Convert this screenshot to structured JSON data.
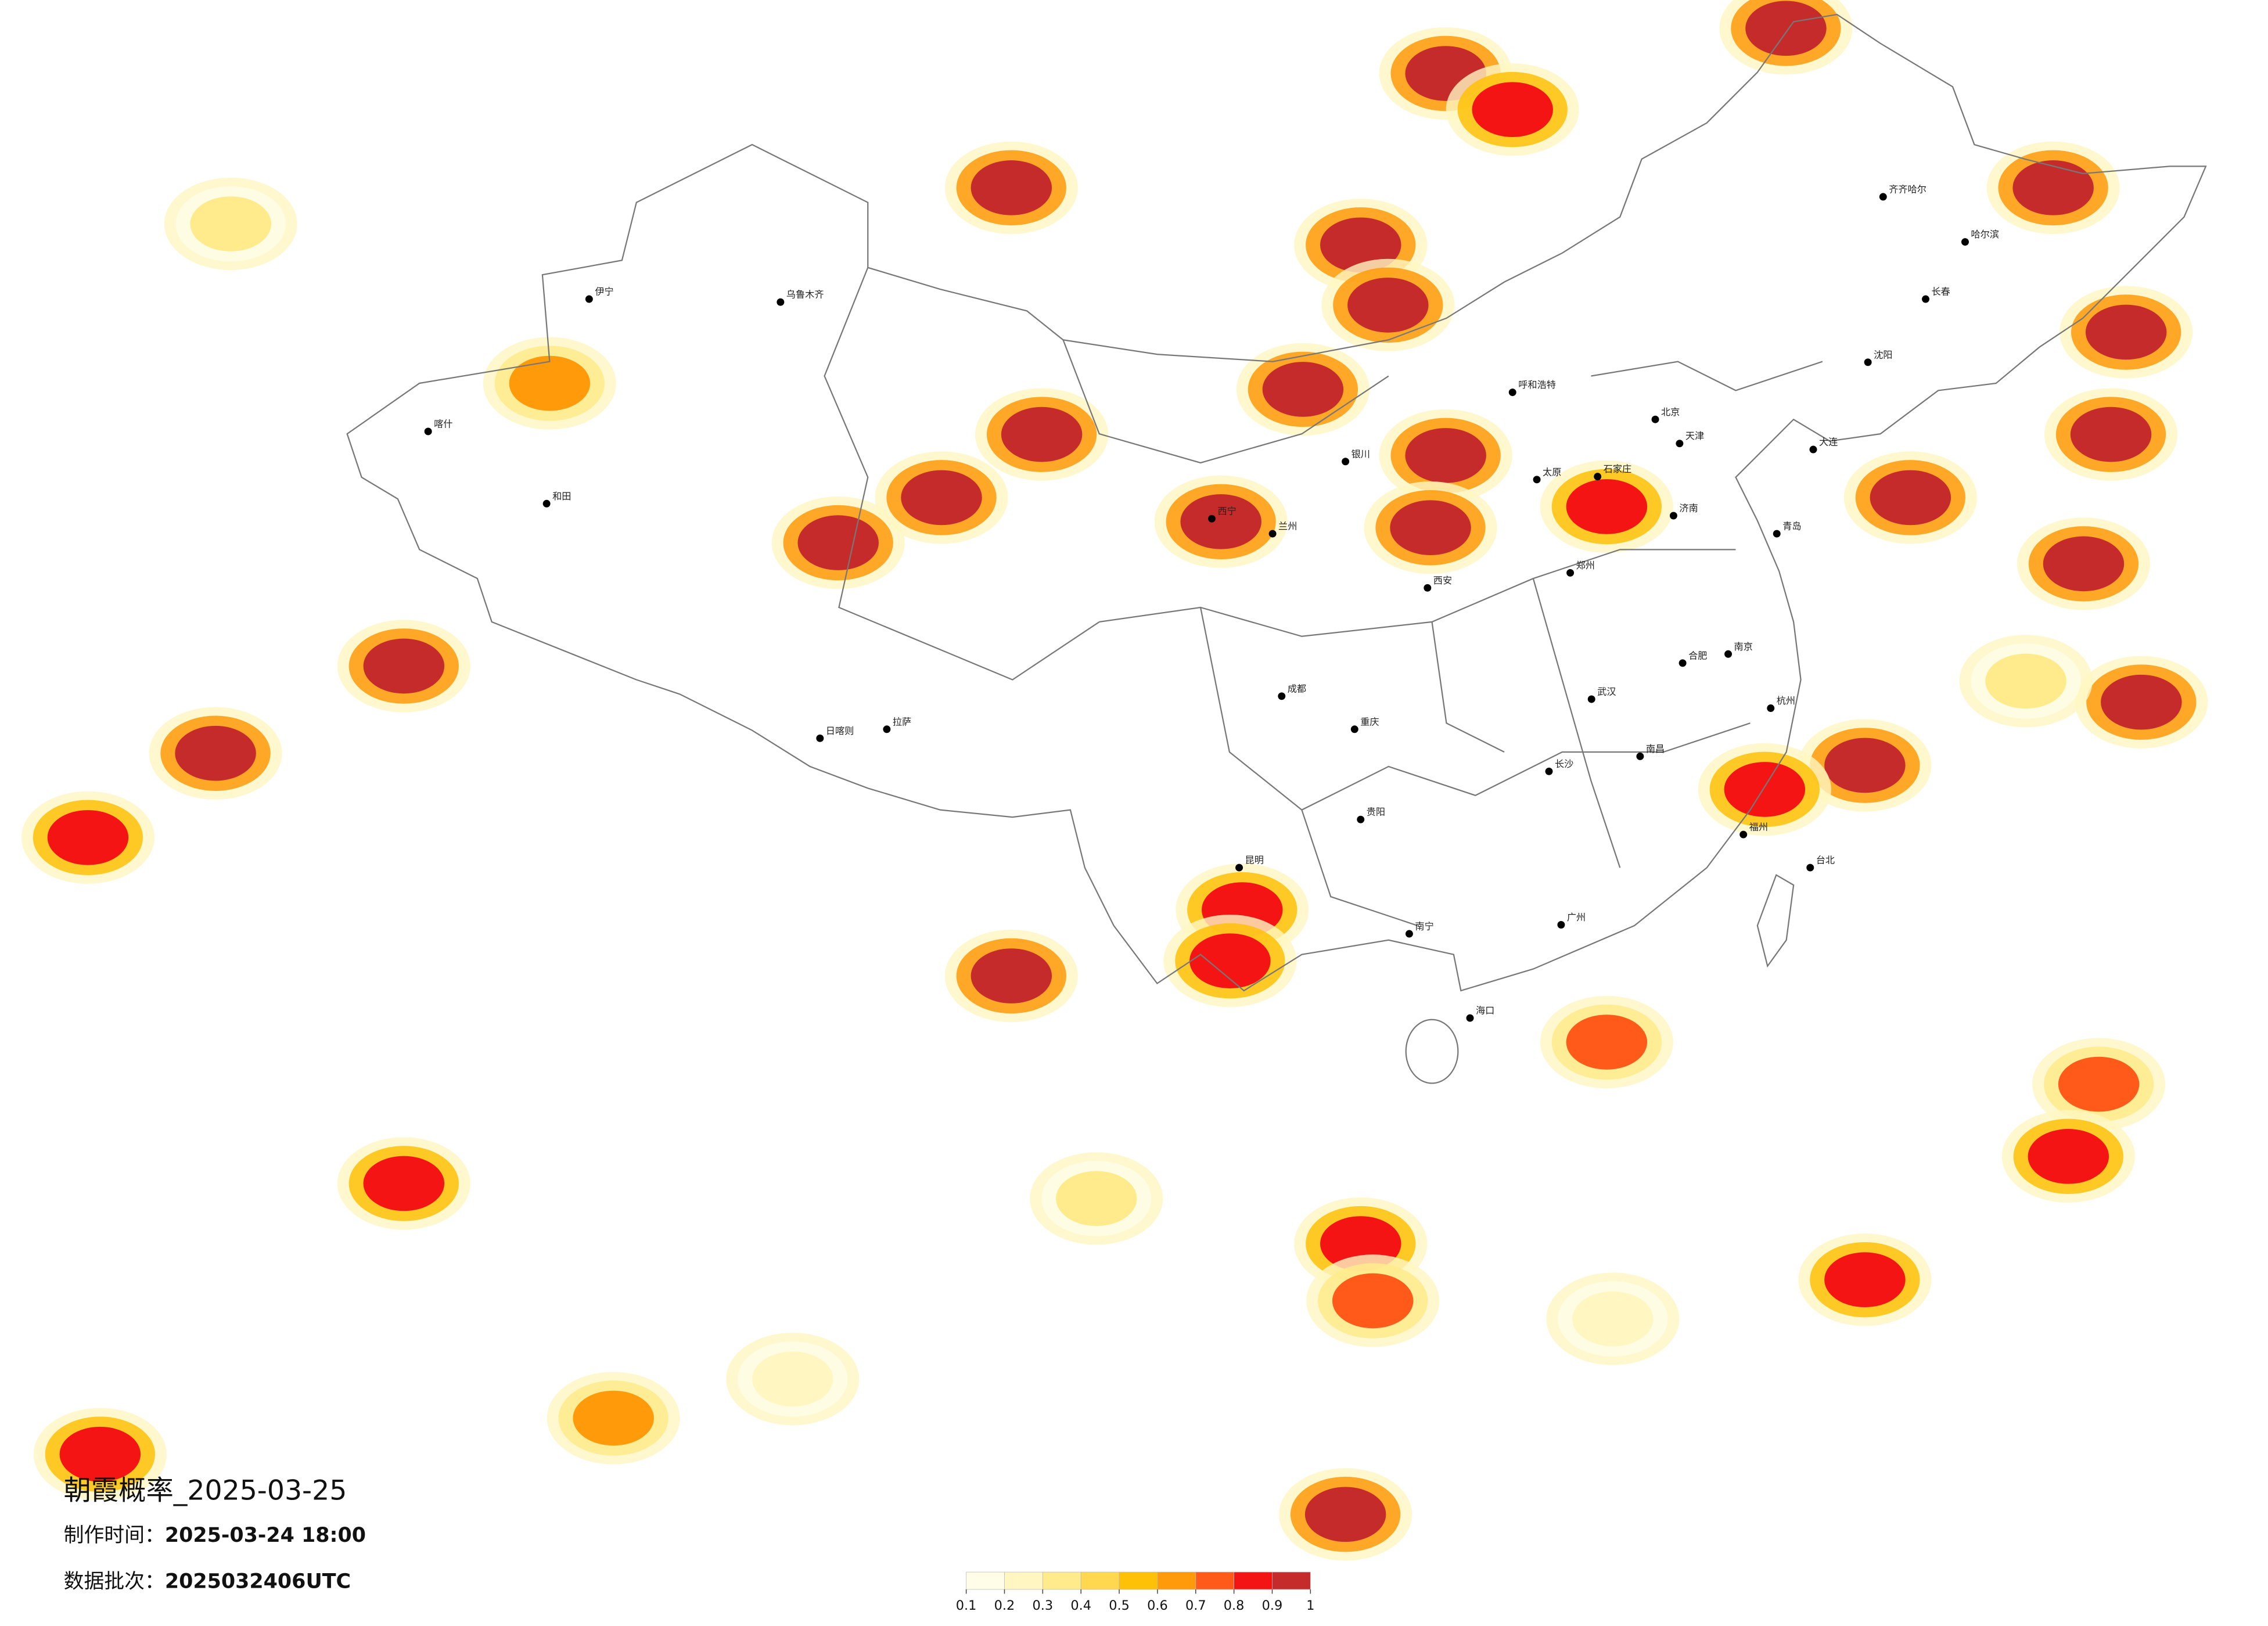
{
  "map": {
    "title": "朝霞概率_2025-03-25",
    "made_label": "制作时间：",
    "made_time": "2025-03-24 18:00",
    "batch_label": "数据批次：",
    "batch": "2025032406UTC",
    "legend": {
      "ticks": [
        0.1,
        0.2,
        0.3,
        0.4,
        0.5,
        0.6,
        0.7,
        0.8,
        0.9,
        1
      ],
      "colors": [
        "#fffde8",
        "#fff6c2",
        "#ffeb8c",
        "#ffd84f",
        "#ffc107",
        "#ff9a0a",
        "#ff5a1a",
        "#f41414",
        "#c62b2b"
      ]
    },
    "cities": [
      {
        "name": "北京",
        "lon": 116.4,
        "lat": 39.9
      },
      {
        "name": "天津",
        "lon": 117.2,
        "lat": 39.1
      },
      {
        "name": "石家庄",
        "lon": 114.5,
        "lat": 38.0
      },
      {
        "name": "太原",
        "lon": 112.5,
        "lat": 37.9
      },
      {
        "name": "呼和浩特",
        "lon": 111.7,
        "lat": 40.8
      },
      {
        "name": "沈阳",
        "lon": 123.4,
        "lat": 41.8
      },
      {
        "name": "长春",
        "lon": 125.3,
        "lat": 43.9
      },
      {
        "name": "哈尔滨",
        "lon": 126.6,
        "lat": 45.8
      },
      {
        "name": "齐齐哈尔",
        "lon": 123.9,
        "lat": 47.3
      },
      {
        "name": "济南",
        "lon": 117.0,
        "lat": 36.7
      },
      {
        "name": "青岛",
        "lon": 120.4,
        "lat": 36.1
      },
      {
        "name": "郑州",
        "lon": 113.6,
        "lat": 34.8
      },
      {
        "name": "西安",
        "lon": 108.9,
        "lat": 34.3
      },
      {
        "name": "兰州",
        "lon": 103.8,
        "lat": 36.1
      },
      {
        "name": "西宁",
        "lon": 101.8,
        "lat": 36.6
      },
      {
        "name": "银川",
        "lon": 106.2,
        "lat": 38.5
      },
      {
        "name": "乌鲁木齐",
        "lon": 87.6,
        "lat": 43.8
      },
      {
        "name": "伊宁",
        "lon": 81.3,
        "lat": 43.9
      },
      {
        "name": "喀什",
        "lon": 76.0,
        "lat": 39.5
      },
      {
        "name": "和田",
        "lon": 79.9,
        "lat": 37.1
      },
      {
        "name": "拉萨",
        "lon": 91.1,
        "lat": 29.6
      },
      {
        "name": "日喀则",
        "lon": 88.9,
        "lat": 29.3
      },
      {
        "name": "成都",
        "lon": 104.1,
        "lat": 30.7
      },
      {
        "name": "重庆",
        "lon": 106.5,
        "lat": 29.6
      },
      {
        "name": "贵阳",
        "lon": 106.7,
        "lat": 26.6
      },
      {
        "name": "昆明",
        "lon": 102.7,
        "lat": 25.0
      },
      {
        "name": "南宁",
        "lon": 108.3,
        "lat": 22.8
      },
      {
        "name": "广州",
        "lon": 113.3,
        "lat": 23.1
      },
      {
        "name": "长沙",
        "lon": 112.9,
        "lat": 28.2
      },
      {
        "name": "武汉",
        "lon": 114.3,
        "lat": 30.6
      },
      {
        "name": "南昌",
        "lon": 115.9,
        "lat": 28.7
      },
      {
        "name": "福州",
        "lon": 119.3,
        "lat": 26.1
      },
      {
        "name": "杭州",
        "lon": 120.2,
        "lat": 30.3
      },
      {
        "name": "南京",
        "lon": 118.8,
        "lat": 32.1
      },
      {
        "name": "合肥",
        "lon": 117.3,
        "lat": 31.8
      },
      {
        "name": "海口",
        "lon": 110.3,
        "lat": 20.0
      },
      {
        "name": "台北",
        "lon": 121.5,
        "lat": 25.0
      },
      {
        "name": "大连",
        "lon": 121.6,
        "lat": 38.9
      }
    ],
    "probability_cells": [
      {
        "lon": 109.5,
        "lat": 51.4,
        "p": 0.95
      },
      {
        "lon": 111.7,
        "lat": 50.2,
        "p": 0.85
      },
      {
        "lon": 120.7,
        "lat": 52.9,
        "p": 0.95
      },
      {
        "lon": 95.2,
        "lat": 47.6,
        "p": 0.95
      },
      {
        "lon": 106.7,
        "lat": 45.7,
        "p": 0.95
      },
      {
        "lon": 107.6,
        "lat": 43.7,
        "p": 0.95
      },
      {
        "lon": 104.8,
        "lat": 40.9,
        "p": 0.9
      },
      {
        "lon": 96.2,
        "lat": 39.4,
        "p": 0.9
      },
      {
        "lon": 92.9,
        "lat": 37.3,
        "p": 0.95
      },
      {
        "lon": 89.5,
        "lat": 35.8,
        "p": 0.9
      },
      {
        "lon": 102.1,
        "lat": 36.5,
        "p": 0.95
      },
      {
        "lon": 109.5,
        "lat": 38.7,
        "p": 0.95
      },
      {
        "lon": 109.0,
        "lat": 36.3,
        "p": 0.9
      },
      {
        "lon": 114.8,
        "lat": 37.0,
        "p": 0.85
      },
      {
        "lon": 75.2,
        "lat": 31.7,
        "p": 0.95
      },
      {
        "lon": 69.0,
        "lat": 28.8,
        "p": 0.9
      },
      {
        "lon": 64.8,
        "lat": 26.0,
        "p": 0.85
      },
      {
        "lon": 131.9,
        "lat": 42.8,
        "p": 0.95
      },
      {
        "lon": 131.4,
        "lat": 39.4,
        "p": 0.95
      },
      {
        "lon": 129.5,
        "lat": 47.6,
        "p": 0.9
      },
      {
        "lon": 130.5,
        "lat": 35.1,
        "p": 0.9
      },
      {
        "lon": 124.8,
        "lat": 37.3,
        "p": 0.9
      },
      {
        "lon": 95.2,
        "lat": 21.4,
        "p": 0.9
      },
      {
        "lon": 102.8,
        "lat": 23.6,
        "p": 0.85
      },
      {
        "lon": 102.4,
        "lat": 21.9,
        "p": 0.8
      },
      {
        "lon": 123.3,
        "lat": 28.4,
        "p": 0.95
      },
      {
        "lon": 120.0,
        "lat": 27.6,
        "p": 0.85
      },
      {
        "lon": 132.4,
        "lat": 30.5,
        "p": 0.9
      },
      {
        "lon": 106.7,
        "lat": 12.5,
        "p": 0.85
      },
      {
        "lon": 107.1,
        "lat": 10.6,
        "p": 0.7
      },
      {
        "lon": 75.2,
        "lat": 14.5,
        "p": 0.8
      },
      {
        "lon": 82.1,
        "lat": 6.7,
        "p": 0.6
      },
      {
        "lon": 65.2,
        "lat": 5.5,
        "p": 0.85
      },
      {
        "lon": 106.2,
        "lat": 3.5,
        "p": 0.9
      },
      {
        "lon": 123.3,
        "lat": 11.3,
        "p": 0.8
      },
      {
        "lon": 131.0,
        "lat": 17.8,
        "p": 0.7
      },
      {
        "lon": 130.0,
        "lat": 15.4,
        "p": 0.85
      },
      {
        "lon": 69.5,
        "lat": 46.4,
        "p": 0.3
      },
      {
        "lon": 114.8,
        "lat": 19.2,
        "p": 0.7
      },
      {
        "lon": 80.0,
        "lat": 41.1,
        "p": 0.6
      },
      {
        "lon": 128.6,
        "lat": 31.2,
        "p": 0.3
      },
      {
        "lon": 88.0,
        "lat": 8.0,
        "p": 0.2
      },
      {
        "lon": 115.0,
        "lat": 10.0,
        "p": 0.2
      },
      {
        "lon": 98.0,
        "lat": 14.0,
        "p": 0.3
      }
    ]
  }
}
